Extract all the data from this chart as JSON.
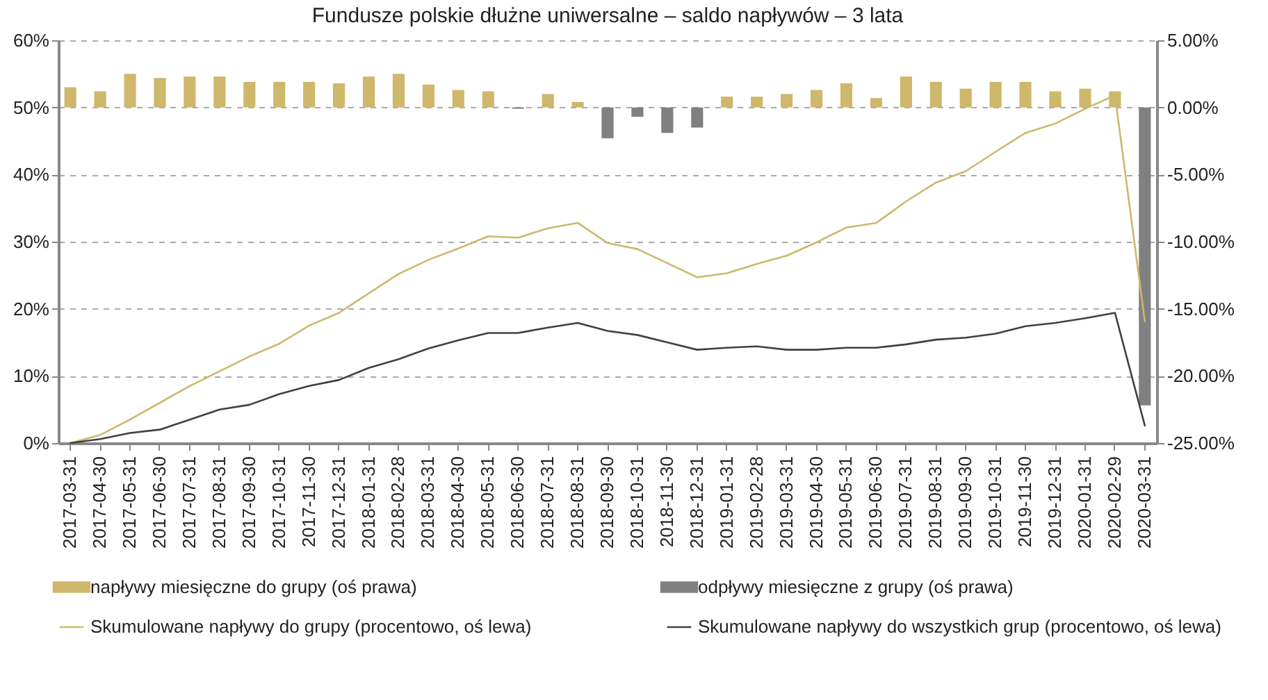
{
  "chart_data": {
    "type": "line",
    "title": "Fundusze polskie dłużne uniwersalne – saldo napływów – 3 lata",
    "categories": [
      "2017-03-31",
      "2017-04-30",
      "2017-05-31",
      "2017-06-30",
      "2017-07-31",
      "2017-08-31",
      "2017-09-30",
      "2017-10-31",
      "2017-11-30",
      "2017-12-31",
      "2018-01-31",
      "2018-02-28",
      "2018-03-31",
      "2018-04-30",
      "2018-05-31",
      "2018-06-30",
      "2018-07-31",
      "2018-08-31",
      "2018-09-30",
      "2018-10-31",
      "2018-11-30",
      "2018-12-31",
      "2019-01-31",
      "2019-02-28",
      "2019-03-31",
      "2019-04-30",
      "2019-05-31",
      "2019-06-30",
      "2019-07-31",
      "2019-08-31",
      "2019-09-30",
      "2019-10-31",
      "2019-11-30",
      "2019-12-31",
      "2020-01-31",
      "2020-02-29",
      "2020-03-31"
    ],
    "series": [
      {
        "name": "napływy miesięczne do grupy (oś prawa)",
        "type": "bar",
        "axis": "y2",
        "color": "#cfb76b",
        "values": [
          1.5,
          1.2,
          2.5,
          2.2,
          2.3,
          2.3,
          1.9,
          1.9,
          1.9,
          1.8,
          2.3,
          2.5,
          1.7,
          1.3,
          1.2,
          null,
          1.0,
          0.4,
          null,
          null,
          null,
          null,
          0.8,
          0.8,
          1.0,
          1.3,
          1.8,
          0.7,
          2.3,
          1.9,
          1.4,
          1.9,
          1.9,
          1.2,
          1.4,
          1.2,
          null
        ]
      },
      {
        "name": "odpływy miesięczne z grupy (oś prawa)",
        "type": "bar",
        "axis": "y2",
        "color": "#808080",
        "values": [
          null,
          null,
          null,
          null,
          null,
          null,
          null,
          null,
          null,
          null,
          null,
          null,
          null,
          null,
          null,
          -0.1,
          null,
          null,
          -2.3,
          -0.7,
          -1.9,
          -1.5,
          null,
          null,
          null,
          null,
          null,
          null,
          null,
          null,
          null,
          null,
          null,
          null,
          null,
          null,
          -22.2
        ]
      },
      {
        "name": "Skumulowane napływy do grupy (procentowo, oś lewa)",
        "color": "#cfb76b",
        "values": [
          0,
          1.2,
          3.5,
          6.0,
          8.5,
          10.7,
          12.9,
          14.8,
          17.5,
          19.4,
          22.3,
          25.2,
          27.3,
          29.0,
          30.8,
          30.6,
          32.0,
          32.8,
          29.8,
          28.9,
          26.8,
          24.7,
          25.3,
          26.7,
          27.9,
          29.9,
          32.1,
          32.8,
          36.0,
          38.8,
          40.5,
          43.4,
          46.2,
          47.6,
          49.8,
          51.8,
          18.1
        ]
      },
      {
        "name": "Skumulowane napływy do wszystkich grup (procentowo, oś lewa)",
        "color": "#404040",
        "values": [
          0,
          0.6,
          1.5,
          2.0,
          3.5,
          5.0,
          5.7,
          7.3,
          8.5,
          9.4,
          11.2,
          12.5,
          14.1,
          15.3,
          16.4,
          16.4,
          17.2,
          17.9,
          16.7,
          16.1,
          15.0,
          13.9,
          14.2,
          14.4,
          13.9,
          13.9,
          14.2,
          14.2,
          14.7,
          15.4,
          15.7,
          16.3,
          17.4,
          17.9,
          18.6,
          19.4,
          2.6
        ]
      }
    ],
    "ylim": [
      0,
      60
    ],
    "yticks": [
      {
        "value": 0,
        "label": "0%"
      },
      {
        "value": 10,
        "label": "10%"
      },
      {
        "value": 20,
        "label": "20%"
      },
      {
        "value": 30,
        "label": "30%"
      },
      {
        "value": 40,
        "label": "40%"
      },
      {
        "value": 50,
        "label": "50%"
      },
      {
        "value": 60,
        "label": "60%"
      }
    ],
    "y2lim": [
      -25,
      5
    ],
    "y2ticks": [
      {
        "value": 5,
        "label": "5.00%"
      },
      {
        "value": 0,
        "label": "0.00%"
      },
      {
        "value": -5,
        "label": "-5.00%"
      },
      {
        "value": -10,
        "label": "-10.00%"
      },
      {
        "value": -15,
        "label": "-15.00%"
      },
      {
        "value": -20,
        "label": "-20.00%"
      },
      {
        "value": -25,
        "label": "-25.00%"
      }
    ],
    "grid": "y",
    "legend": "bottom"
  }
}
